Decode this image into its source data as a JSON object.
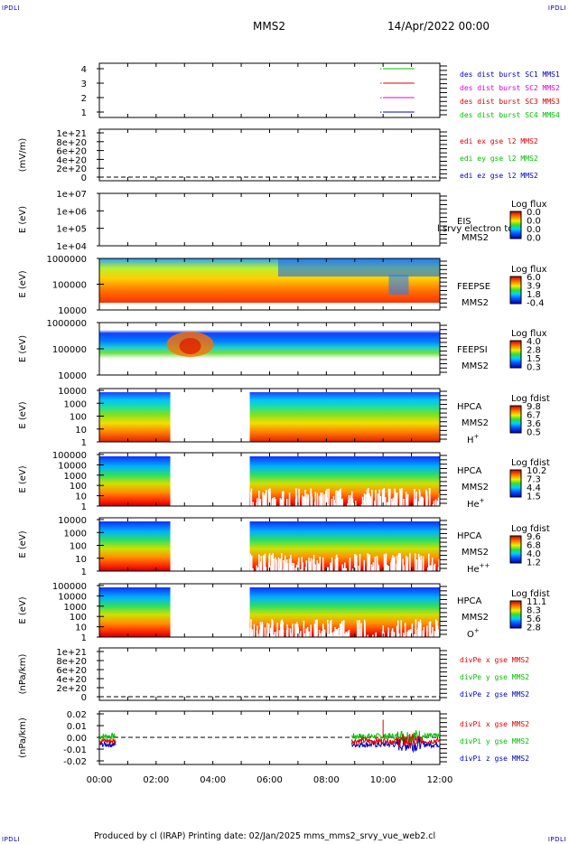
{
  "corners": {
    "tl": "IPDLI",
    "tr": "IPDLI",
    "bl": "IPDLI",
    "br": "IPDLI"
  },
  "header": {
    "spacecraft": "MMS2",
    "date": "14/Apr/2022 00:00"
  },
  "footer": {
    "text": "Produced by cl (IRAP)   Printing date: 02/Jan/2025   mms_mms2_srvy_vue_web2.cl"
  },
  "colors": {
    "red": "#e00000",
    "magenta": "#e000e0",
    "green": "#00c000",
    "blue": "#0000c0",
    "frame": "#000000"
  },
  "chart_data": [
    {
      "type": "line",
      "panel": "burst",
      "yticks": [
        "4",
        "3",
        "2",
        "1"
      ],
      "x_ticks": [
        "00:00",
        "02:00",
        "04:00",
        "06:00",
        "08:00",
        "10:00",
        "12:00"
      ],
      "legend": [
        "des dist burst SC1 MMS1",
        "des dist burst SC2 MMS2",
        "des dist burst SC3 MMS3",
        "des dist burst SC4 MMS4"
      ],
      "intervals_hours": [
        {
          "sc": 4,
          "start": 10.0,
          "end": 11.1
        },
        {
          "sc": 3,
          "start": 10.0,
          "end": 11.1
        },
        {
          "sc": 2,
          "start": 10.0,
          "end": 11.1
        },
        {
          "sc": 1,
          "start": 10.0,
          "end": 11.1
        }
      ]
    },
    {
      "type": "line",
      "panel": "edi",
      "ylabel": "(mV/m)",
      "yticks": [
        "1e+21",
        "8e+20",
        "6e+20",
        "4e+20",
        "2e+20",
        "0"
      ],
      "legend": [
        "edi ex gse l2 MMS2",
        "edi ey gse l2 MMS2",
        "edi ez gse l2 MMS2"
      ]
    },
    {
      "type": "heatmap",
      "panel": "eis",
      "ylabel": "E (eV)",
      "yticks": [
        "1e+07",
        "1e+06",
        "1e+05",
        "1e+04"
      ],
      "instrument": [
        "EIS",
        "MMS2"
      ],
      "overlay_text": "l srvy electron to",
      "colorbar_title": "Log flux",
      "colorbar_ticks": [
        "0.0",
        "0.0",
        "0.0",
        "0.0"
      ]
    },
    {
      "type": "heatmap",
      "panel": "feepse",
      "ylabel": "E (eV)",
      "yticks": [
        "1000000",
        "100000",
        "10000"
      ],
      "instrument": [
        "FEEPSE",
        "MMS2"
      ],
      "colorbar_title": "Log flux",
      "colorbar_ticks": [
        "6.0",
        "3.9",
        "1.8",
        "-0.4"
      ]
    },
    {
      "type": "heatmap",
      "panel": "feepsi",
      "ylabel": "E (eV)",
      "yticks": [
        "1000000",
        "100000",
        "10000"
      ],
      "instrument": [
        "FEEPSI",
        "MMS2"
      ],
      "colorbar_title": "Log flux",
      "colorbar_ticks": [
        "4.0",
        "2.8",
        "1.5",
        "0.3"
      ]
    },
    {
      "type": "heatmap",
      "panel": "hpca_h",
      "ylabel": "E (eV)",
      "yticks": [
        "10000",
        "1000",
        "100",
        "10",
        "1"
      ],
      "instrument": [
        "HPCA",
        "MMS2"
      ],
      "species": "H",
      "species_sup": "+",
      "colorbar_title": "Log fdist",
      "colorbar_ticks": [
        "9.8",
        "6.7",
        "3.6",
        "0.5"
      ],
      "data_gap_hours": [
        2.5,
        5.3
      ]
    },
    {
      "type": "heatmap",
      "panel": "hpca_he",
      "ylabel": "E (eV)",
      "yticks": [
        "100000",
        "10000",
        "1000",
        "100",
        "10",
        "1"
      ],
      "instrument": [
        "HPCA",
        "MMS2"
      ],
      "species": "He",
      "species_sup": "+",
      "colorbar_title": "Log fdist",
      "colorbar_ticks": [
        "10.2",
        "7.3",
        "4.4",
        "1.5"
      ],
      "data_gap_hours": [
        2.5,
        5.3
      ]
    },
    {
      "type": "heatmap",
      "panel": "hpca_hepp",
      "ylabel": "E (eV)",
      "yticks": [
        "10000",
        "1000",
        "100",
        "10",
        "1"
      ],
      "instrument": [
        "HPCA",
        "MMS2"
      ],
      "species": "He",
      "species_sup": "++",
      "colorbar_title": "Log fdist",
      "colorbar_ticks": [
        "9.6",
        "6.8",
        "4.0",
        "1.2"
      ],
      "data_gap_hours": [
        2.5,
        5.3
      ]
    },
    {
      "type": "heatmap",
      "panel": "hpca_o",
      "ylabel": "E (eV)",
      "yticks": [
        "100000",
        "10000",
        "1000",
        "100",
        "10",
        "1"
      ],
      "instrument": [
        "HPCA",
        "MMS2"
      ],
      "species": "O",
      "species_sup": "+",
      "colorbar_title": "Log fdist",
      "colorbar_ticks": [
        "11.1",
        "8.3",
        "5.6",
        "2.8"
      ],
      "data_gap_hours": [
        2.5,
        5.3
      ]
    },
    {
      "type": "line",
      "panel": "divpe",
      "ylabel": "(nPa/km)",
      "yticks": [
        "1e+21",
        "8e+20",
        "6e+20",
        "4e+20",
        "2e+20",
        "0"
      ],
      "legend": [
        "divPe x gse MMS2",
        "divPe y gse MMS2",
        "divPe z gse MMS2"
      ]
    },
    {
      "type": "line",
      "panel": "divpi",
      "ylabel": "(nPa/km)",
      "yticks": [
        "0.02",
        "0.01",
        "0.00",
        "-0.01",
        "-0.02"
      ],
      "ylim": [
        -0.025,
        0.025
      ],
      "legend": [
        "divPi x gse MMS2",
        "divPi y gse MMS2",
        "divPi z gse MMS2"
      ],
      "x_ticks": [
        "00:00",
        "02:00",
        "04:00",
        "06:00",
        "08:00",
        "10:00",
        "12:00"
      ],
      "data_intervals_hours": [
        [
          0.0,
          0.6
        ],
        [
          8.9,
          12.0
        ]
      ]
    }
  ]
}
